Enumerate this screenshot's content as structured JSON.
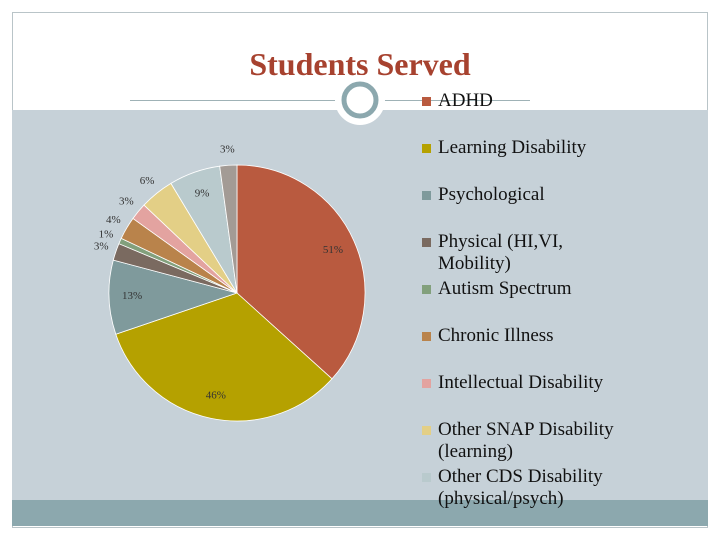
{
  "chart_data": {
    "type": "pie",
    "title": "Students Served",
    "categories": [
      "ADHD",
      "Learning Disability",
      "Psychological",
      "Physical (HI,VI, Mobility)",
      "Autism Spectrum",
      "Chronic Illness",
      "Intellectual Disability",
      "Other SNAP Disability (learning)",
      "Other CDS Disability (physical/psych)",
      null
    ],
    "values": [
      51,
      46,
      13,
      3,
      1,
      4,
      3,
      6,
      9,
      3
    ],
    "value_labels": [
      "51%",
      "46%",
      "13%",
      "3%",
      "1%",
      "4%",
      "3%",
      "6%",
      "9%",
      "3%"
    ],
    "colors": [
      "#b95a3f",
      "#b5a100",
      "#7f9a9c",
      "#7a6a60",
      "#82a07c",
      "#b9834b",
      "#e3a3a0",
      "#e3cf86",
      "#b9cacd",
      "#a39b95"
    ]
  }
}
